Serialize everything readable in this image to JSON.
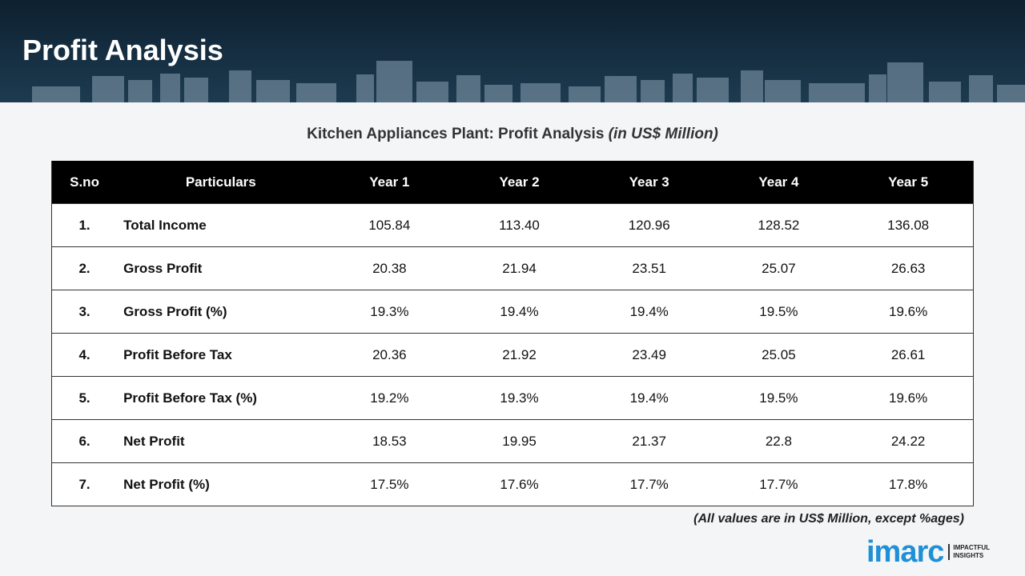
{
  "header": {
    "title": "Profit Analysis"
  },
  "table": {
    "title": "Kitchen Appliances Plant: Profit Analysis",
    "title_unit": "(in US$ Million)",
    "columns": [
      "S.no",
      "Particulars",
      "Year 1",
      "Year 2",
      "Year 3",
      "Year 4",
      "Year 5"
    ],
    "rows": [
      [
        "1.",
        "Total Income",
        "105.84",
        "113.40",
        "120.96",
        "128.52",
        "136.08"
      ],
      [
        "2.",
        "Gross Profit",
        "20.38",
        "21.94",
        "23.51",
        "25.07",
        "26.63"
      ],
      [
        "3.",
        "Gross Profit (%)",
        "19.3%",
        "19.4%",
        "19.4%",
        "19.5%",
        "19.6%"
      ],
      [
        "4.",
        "Profit Before Tax",
        "20.36",
        "21.92",
        "23.49",
        "25.05",
        "26.61"
      ],
      [
        "5.",
        "Profit Before Tax (%)",
        "19.2%",
        "19.3%",
        "19.4%",
        "19.5%",
        "19.6%"
      ],
      [
        "6.",
        "Net Profit",
        "18.53",
        "19.95",
        "21.37",
        "22.8",
        "24.22"
      ],
      [
        "7.",
        "Net Profit (%)",
        "17.5%",
        "17.6%",
        "17.7%",
        "17.7%",
        "17.8%"
      ]
    ],
    "footnote": "(All values are in US$ Million, except %ages)"
  },
  "logo": {
    "brand": "imarc",
    "tagline_1": "IMPACTFUL",
    "tagline_2": "INSIGHTS"
  }
}
